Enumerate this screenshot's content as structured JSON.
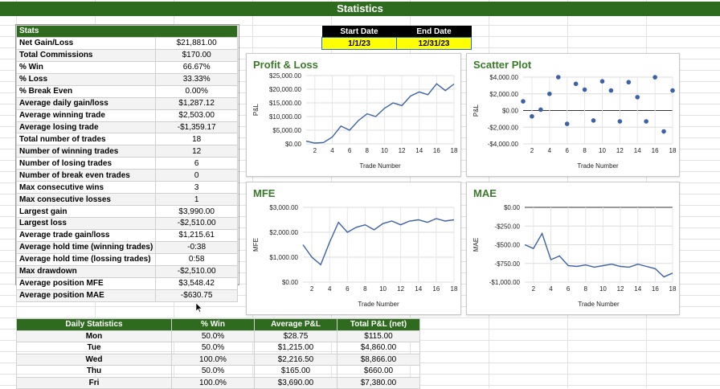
{
  "sheet_title": "Statistics",
  "stats_header": "Stats",
  "stats": [
    {
      "label": "Net Gain/Loss",
      "value": "$21,881.00"
    },
    {
      "label": "Total Commissions",
      "value": "$170.00"
    },
    {
      "label": "% Win",
      "value": "66.67%"
    },
    {
      "label": "% Loss",
      "value": "33.33%"
    },
    {
      "label": "% Break Even",
      "value": "0.00%"
    },
    {
      "label": "Average daily gain/loss",
      "value": "$1,287.12"
    },
    {
      "label": "Average winning trade",
      "value": "$2,503.00"
    },
    {
      "label": "Average losing trade",
      "value": "-$1,359.17"
    },
    {
      "label": "Total number of trades",
      "value": "18"
    },
    {
      "label": "Number of winning trades",
      "value": "12"
    },
    {
      "label": "Number of losing trades",
      "value": "6"
    },
    {
      "label": "Number of break even trades",
      "value": "0"
    },
    {
      "label": "Max consecutive wins",
      "value": "3"
    },
    {
      "label": "Max consecutive losses",
      "value": "1"
    },
    {
      "label": "Largest gain",
      "value": "$3,990.00"
    },
    {
      "label": "Largest loss",
      "value": "-$2,510.00"
    },
    {
      "label": "Average trade gain/loss",
      "value": "$1,215.61"
    },
    {
      "label": "Average hold time (winning trades)",
      "value": "-0:38"
    },
    {
      "label": "Average hold time (lossing trades)",
      "value": "0:58"
    },
    {
      "label": "Max drawdown",
      "value": "-$2,510.00"
    },
    {
      "label": "Average position MFE",
      "value": "$3,548.42"
    },
    {
      "label": "Average position MAE",
      "value": "-$630.75"
    }
  ],
  "dates": {
    "start_label": "Start Date",
    "end_label": "End Date",
    "start_value": "1/1/23",
    "end_value": "12/31/23"
  },
  "daily": {
    "headers": [
      "Daily Statistics",
      "% Win",
      "Average P&L",
      "Total P&L (net)"
    ],
    "rows": [
      [
        "Mon",
        "50.0%",
        "$28.75",
        "$115.00"
      ],
      [
        "Tue",
        "50.0%",
        "$1,215.00",
        "$4,860.00"
      ],
      [
        "Wed",
        "100.0%",
        "$2,216.50",
        "$8,866.00"
      ],
      [
        "Thu",
        "50.0%",
        "$165.00",
        "$660.00"
      ],
      [
        "Fri",
        "100.0%",
        "$3,690.00",
        "$7,380.00"
      ]
    ]
  },
  "colors": {
    "header_green": "#2e6b1f",
    "title_green": "#3a7a2a",
    "line_blue": "#3b62a8",
    "date_yellow": "#ffff00"
  },
  "chart_data": [
    {
      "id": "pnl",
      "type": "line",
      "title": "Profit & Loss",
      "xlabel": "Trade Number",
      "ylabel": "P&L",
      "xlim": [
        1,
        18
      ],
      "ylim": [
        0,
        25000
      ],
      "yticks": [
        0,
        5000,
        10000,
        15000,
        20000,
        25000
      ],
      "yticklabels": [
        "$0.00",
        "$5,000.00",
        "$10,000.00",
        "$15,000.00",
        "$20,000.00",
        "$25,000.00"
      ],
      "xticks": [
        2,
        4,
        6,
        8,
        10,
        12,
        14,
        16,
        18
      ],
      "x": [
        1,
        2,
        3,
        4,
        5,
        6,
        7,
        8,
        9,
        10,
        11,
        12,
        13,
        14,
        15,
        16,
        17,
        18
      ],
      "y": [
        1000,
        300,
        500,
        2500,
        6500,
        5000,
        8500,
        11000,
        10000,
        13000,
        15000,
        14000,
        17500,
        19000,
        18000,
        22000,
        19500,
        21900
      ]
    },
    {
      "id": "scatter",
      "type": "scatter",
      "title": "Scatter Plot",
      "xlabel": "Trade Number",
      "ylabel": "P&L",
      "xlim": [
        1,
        18
      ],
      "ylim": [
        -4000,
        4000
      ],
      "yticks": [
        -4000,
        -2000,
        0,
        2000,
        4000
      ],
      "yticklabels": [
        "-$4,000.00",
        "-$2,000.00",
        "$0.00",
        "$2,000.00",
        "$4,000.00"
      ],
      "xticks": [
        2,
        4,
        6,
        8,
        10,
        12,
        14,
        16,
        18
      ],
      "x": [
        1,
        2,
        3,
        4,
        5,
        6,
        7,
        8,
        9,
        10,
        11,
        12,
        13,
        14,
        15,
        16,
        17,
        18
      ],
      "y": [
        1100,
        -700,
        100,
        2000,
        4000,
        -1600,
        3200,
        2500,
        -1200,
        3500,
        2400,
        -1300,
        3400,
        1600,
        -1300,
        3990,
        -2510,
        2400
      ]
    },
    {
      "id": "mfe",
      "type": "line",
      "title": "MFE",
      "xlabel": "Trade Number",
      "ylabel": "MFE",
      "xlim": [
        1,
        18
      ],
      "ylim": [
        0,
        3000
      ],
      "yticks": [
        0,
        1000,
        2000,
        3000
      ],
      "yticklabels": [
        "$0.00",
        "$1,000.00",
        "$2,000.00",
        "$3,000.00"
      ],
      "xticks": [
        2,
        4,
        6,
        8,
        10,
        12,
        14,
        16,
        18
      ],
      "x": [
        1,
        2,
        3,
        4,
        5,
        6,
        7,
        8,
        9,
        10,
        11,
        12,
        13,
        14,
        15,
        16,
        17,
        18
      ],
      "y": [
        1500,
        1000,
        700,
        1600,
        2400,
        2000,
        2200,
        2300,
        2100,
        2350,
        2450,
        2300,
        2450,
        2500,
        2400,
        2550,
        2450,
        2500
      ]
    },
    {
      "id": "mae",
      "type": "line",
      "title": "MAE",
      "xlabel": "Trade Number",
      "ylabel": "MAE",
      "xlim": [
        1,
        18
      ],
      "ylim": [
        -1000,
        0
      ],
      "yticks": [
        -1000,
        -750,
        -500,
        -250,
        0
      ],
      "yticklabels": [
        "-$1,000.00",
        "-$750.00",
        "-$500.00",
        "-$250.00",
        "$0.00"
      ],
      "xticks": [
        2,
        4,
        6,
        8,
        10,
        12,
        14,
        16,
        18
      ],
      "x": [
        1,
        2,
        3,
        4,
        5,
        6,
        7,
        8,
        9,
        10,
        11,
        12,
        13,
        14,
        15,
        16,
        17,
        18
      ],
      "y": [
        -500,
        -550,
        -350,
        -700,
        -650,
        -780,
        -790,
        -770,
        -800,
        -780,
        -760,
        -790,
        -800,
        -760,
        -790,
        -820,
        -930,
        -880
      ]
    }
  ]
}
